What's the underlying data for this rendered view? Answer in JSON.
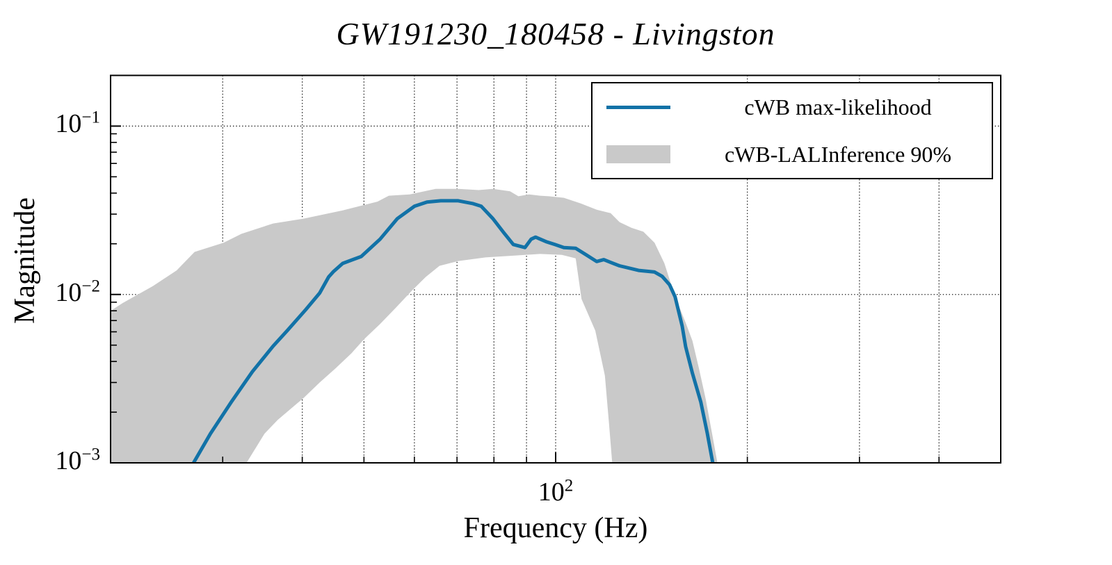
{
  "colors": {
    "line_blue": "#1272a7",
    "band_gray": "#c9c9c9",
    "grid": "#1a1a1a",
    "spine": "#000000",
    "text": "#000000"
  },
  "axes": {
    "x_tick_label": {
      "base": "10",
      "exp": "2"
    },
    "y_tick_labels": [
      {
        "base": "10",
        "exp": "−1"
      },
      {
        "base": "10",
        "exp": "−2"
      },
      {
        "base": "10",
        "exp": "−3"
      }
    ]
  },
  "legend": {
    "items": [
      {
        "label": "cWB max-likelihood",
        "swatch": "line",
        "color": "#1272a7"
      },
      {
        "label": "cWB-LALInference 90%",
        "swatch": "patch",
        "color": "#c9c9c9"
      }
    ]
  },
  "chart_data": {
    "type": "line",
    "title": "GW191230_180458 - Livingston",
    "xlabel": "Frequency (Hz)",
    "ylabel": "Magnitude",
    "xscale": "log",
    "yscale": "log",
    "xlim": [
      20,
      500
    ],
    "ylim": [
      0.001,
      0.2
    ],
    "x_ticks_major": [
      100
    ],
    "x_ticks_minor": [
      30,
      40,
      50,
      60,
      70,
      80,
      90,
      200,
      300,
      400
    ],
    "y_ticks_major": [
      0.1,
      0.01,
      0.001
    ],
    "x_gridlines": [
      30,
      40,
      50,
      60,
      70,
      80,
      90,
      100,
      200,
      300,
      400
    ],
    "y_gridlines": [
      0.1,
      0.01
    ],
    "grid_style": "dotted",
    "legend_position": "upper right",
    "series": [
      {
        "name": "cWB max-likelihood",
        "type": "line",
        "color": "#1272a7",
        "points": [
          [
            27.0,
            0.001
          ],
          [
            28.7,
            0.00149
          ],
          [
            31.0,
            0.00232
          ],
          [
            33.4,
            0.00348
          ],
          [
            36.0,
            0.00493
          ],
          [
            37.9,
            0.00611
          ],
          [
            40.5,
            0.00812
          ],
          [
            42.6,
            0.0102
          ],
          [
            44.0,
            0.0127
          ],
          [
            44.8,
            0.0137
          ],
          [
            46.3,
            0.0153
          ],
          [
            49.5,
            0.0168
          ],
          [
            53.0,
            0.0213
          ],
          [
            56.4,
            0.0282
          ],
          [
            60.0,
            0.0334
          ],
          [
            62.8,
            0.0354
          ],
          [
            66.0,
            0.036
          ],
          [
            70.3,
            0.036
          ],
          [
            74.0,
            0.0347
          ],
          [
            76.4,
            0.0334
          ],
          [
            79.7,
            0.0282
          ],
          [
            83.1,
            0.023
          ],
          [
            85.8,
            0.0198
          ],
          [
            89.5,
            0.019
          ],
          [
            91.5,
            0.0213
          ],
          [
            93.0,
            0.0219
          ],
          [
            96.6,
            0.0206
          ],
          [
            99.7,
            0.0198
          ],
          [
            103,
            0.019
          ],
          [
            107.5,
            0.0188
          ],
          [
            111.7,
            0.0172
          ],
          [
            116,
            0.0157
          ],
          [
            119,
            0.0161
          ],
          [
            122,
            0.0155
          ],
          [
            126,
            0.0148
          ],
          [
            135,
            0.0139
          ],
          [
            143,
            0.0136
          ],
          [
            147,
            0.0128
          ],
          [
            151,
            0.0114
          ],
          [
            154,
            0.0097
          ],
          [
            158,
            0.0065
          ],
          [
            160,
            0.0049
          ],
          [
            164,
            0.0034
          ],
          [
            169,
            0.0023
          ],
          [
            173,
            0.0015
          ],
          [
            176.5,
            0.001
          ]
        ]
      },
      {
        "name": "cWB-LALInference 90%",
        "type": "band",
        "color": "#c9c9c9",
        "upper": [
          [
            20,
            0.008
          ],
          [
            20.9,
            0.0089
          ],
          [
            23.3,
            0.0112
          ],
          [
            25.4,
            0.0139
          ],
          [
            27.1,
            0.0179
          ],
          [
            30.1,
            0.0203
          ],
          [
            32.1,
            0.0229
          ],
          [
            36,
            0.0264
          ],
          [
            40.2,
            0.0282
          ],
          [
            46.3,
            0.0316
          ],
          [
            52.5,
            0.0356
          ],
          [
            54.7,
            0.0386
          ],
          [
            59,
            0.0393
          ],
          [
            64.8,
            0.0424
          ],
          [
            70.3,
            0.0424
          ],
          [
            75.7,
            0.0417
          ],
          [
            79.7,
            0.0424
          ],
          [
            84.8,
            0.041
          ],
          [
            87.4,
            0.0383
          ],
          [
            90.8,
            0.0393
          ],
          [
            94.5,
            0.0386
          ],
          [
            97.5,
            0.0383
          ],
          [
            103,
            0.0375
          ],
          [
            109.5,
            0.0347
          ],
          [
            116,
            0.0319
          ],
          [
            122,
            0.0304
          ],
          [
            126,
            0.0269
          ],
          [
            131.5,
            0.0249
          ],
          [
            137.3,
            0.0236
          ],
          [
            143,
            0.0203
          ],
          [
            148.2,
            0.0153
          ],
          [
            154,
            0.0097
          ],
          [
            160,
            0.0068
          ],
          [
            164,
            0.0053
          ],
          [
            168,
            0.0036
          ],
          [
            172,
            0.0024
          ],
          [
            176,
            0.0015
          ],
          [
            179.5,
            0.001
          ]
        ],
        "lower": [
          [
            20,
            0.001
          ],
          [
            32.7,
            0.001
          ],
          [
            34.9,
            0.00149
          ],
          [
            36.6,
            0.0018
          ],
          [
            38.8,
            0.00217
          ],
          [
            40.2,
            0.00243
          ],
          [
            42.6,
            0.003
          ],
          [
            45.1,
            0.00364
          ],
          [
            47.8,
            0.00448
          ],
          [
            50,
            0.00542
          ],
          [
            53,
            0.00667
          ],
          [
            56,
            0.00828
          ],
          [
            59.4,
            0.0105
          ],
          [
            62.5,
            0.0127
          ],
          [
            65.7,
            0.0148
          ],
          [
            70.3,
            0.0158
          ],
          [
            77.6,
            0.0166
          ],
          [
            85.8,
            0.017
          ],
          [
            94.5,
            0.0174
          ],
          [
            102.3,
            0.0172
          ],
          [
            107.5,
            0.0164
          ],
          [
            109.8,
            0.0094
          ],
          [
            115.4,
            0.0061
          ],
          [
            119.5,
            0.0033
          ],
          [
            121.3,
            0.0017
          ],
          [
            122.7,
            0.001
          ],
          [
            179.5,
            0.001
          ]
        ]
      }
    ]
  }
}
